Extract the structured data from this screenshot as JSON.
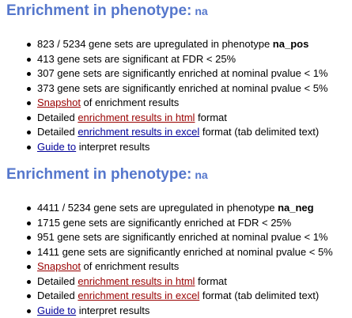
{
  "sections": [
    {
      "heading": "Enrichment in phenotype:",
      "phenotype": "na",
      "items": [
        {
          "upregulated_text": "823 / 5234 gene sets are upregulated in phenotype ",
          "upregulated_phenotype": "na_pos"
        },
        {
          "text": "413 gene sets are significant at FDR < 25%"
        },
        {
          "text": "307 gene sets are significantly enriched at nominal pvalue < 1%"
        },
        {
          "text": "373 gene sets are significantly enriched at nominal pvalue < 5%"
        },
        {
          "link": "Snapshot",
          "suffix": " of enrichment results"
        },
        {
          "prefix": "Detailed ",
          "link": "enrichment results in html",
          "suffix": " format"
        },
        {
          "prefix": "Detailed ",
          "link": "enrichment results in excel",
          "suffix": " format (tab delimited text)"
        },
        {
          "link": "Guide to",
          "suffix": " interpret results"
        }
      ]
    },
    {
      "heading": "Enrichment in phenotype:",
      "phenotype": "na",
      "items": [
        {
          "upregulated_text": "4411 / 5234 gene sets are upregulated in phenotype ",
          "upregulated_phenotype": "na_neg"
        },
        {
          "text": "1715 gene sets are significantly enriched at FDR < 25%"
        },
        {
          "text": "951 gene sets are significantly enriched at nominal pvalue < 1%"
        },
        {
          "text": "1411 gene sets are significantly enriched at nominal pvalue < 5%"
        },
        {
          "link": "Snapshot",
          "suffix": " of enrichment results"
        },
        {
          "prefix": "Detailed ",
          "link": "enrichment results in html",
          "suffix": " format"
        },
        {
          "prefix": "Detailed ",
          "link": "enrichment results in excel",
          "suffix": " format (tab delimited text)"
        },
        {
          "link": "Guide to",
          "suffix": " interpret results"
        }
      ]
    }
  ],
  "colors": {
    "heading": "#5577cc",
    "link_visited": "#990000",
    "link_unvisited": "#000099",
    "text": "#000000"
  }
}
